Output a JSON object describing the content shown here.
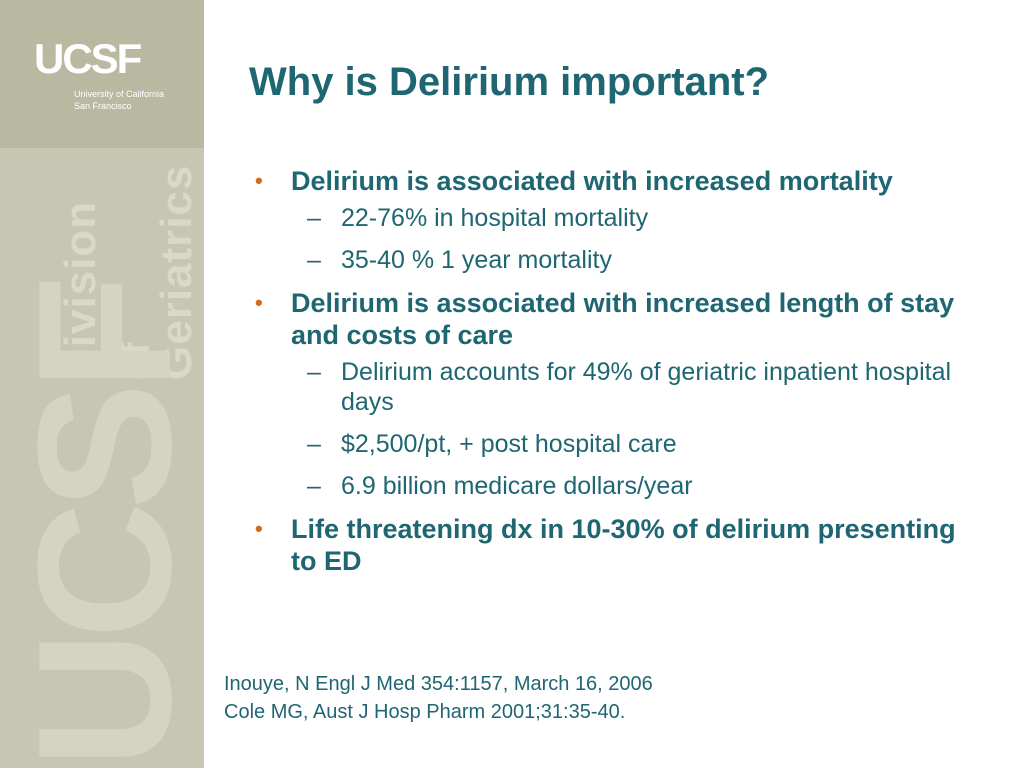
{
  "branding": {
    "logo": "UCSF",
    "logo_sub_line1": "University of California",
    "logo_sub_line2": "San Francisco",
    "sidebar_text": [
      "Division",
      "of",
      "Geriatrics"
    ],
    "watermark": "UCSF"
  },
  "slide": {
    "title": "Why is Delirium important?",
    "bullets": [
      {
        "text": "Delirium is associated with increased mortality",
        "subs": [
          "22-76% in hospital mortality",
          "35-40 % 1 year mortality"
        ]
      },
      {
        "text": "Delirium is associated with increased length of stay and costs of care",
        "subs": [
          "Delirium accounts for 49% of geriatric inpatient hospital days",
          "$2,500/pt, + post hospital care",
          "6.9 billion medicare dollars/year"
        ]
      },
      {
        "text": "Life threatening dx in 10-30% of delirium presenting to ED",
        "subs": []
      }
    ],
    "references": [
      "Inouye, N Engl J Med 354:1157, March 16, 2006",
      "Cole MG, Aust J Hosp Pharm 2001;31:35-40."
    ]
  },
  "colors": {
    "title": "#1f6673",
    "bullet_marker": "#d46a1c",
    "sidebar": "#c6c6b2"
  }
}
